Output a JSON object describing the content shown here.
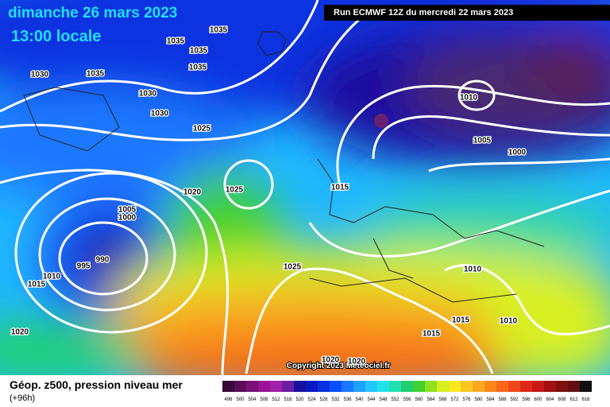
{
  "header": {
    "date": "dimanche 26 mars 2023",
    "time": "13:00 locale",
    "run": "Run ECMWF 12Z du mercredi 22 mars 2023"
  },
  "isobar_labels": [
    "1035",
    "1035",
    "1035",
    "1035",
    "1030",
    "1035",
    "1030",
    "1030",
    "1025",
    "1010",
    "1005",
    "1000",
    "1020",
    "1025",
    "1015",
    "1005",
    "1000",
    "990",
    "995",
    "1010",
    "1015",
    "1025",
    "1010",
    "1015",
    "1010",
    "1015",
    "1020",
    "1020",
    "1020"
  ],
  "copyright": "Copyright 2023 Meteociel.fr",
  "footer": {
    "title": "Géop. z500, pression niveau mer",
    "lead": "(+96h)"
  },
  "scale": {
    "labels": [
      496,
      500,
      504,
      508,
      512,
      516,
      520,
      524,
      528,
      532,
      536,
      540,
      544,
      548,
      552,
      556,
      560,
      564,
      568,
      572,
      576,
      580,
      584,
      588,
      592,
      596,
      600,
      604,
      608,
      612,
      616
    ],
    "colors": [
      "#3a0a3a",
      "#5a0e5a",
      "#7a1078",
      "#9a1296",
      "#a020a8",
      "#6a20a0",
      "#1a10a0",
      "#0a1ac0",
      "#0a30e0",
      "#0a50f8",
      "#1a78ff",
      "#20a0ff",
      "#20c8ff",
      "#20e0e8",
      "#20e0b0",
      "#20d070",
      "#40d030",
      "#90e020",
      "#d8f020",
      "#f8e820",
      "#f8c820",
      "#f8a820",
      "#f88818",
      "#f86818",
      "#f04818",
      "#e02818",
      "#c81818",
      "#a01010",
      "#801010",
      "#601010",
      "#101010"
    ]
  }
}
